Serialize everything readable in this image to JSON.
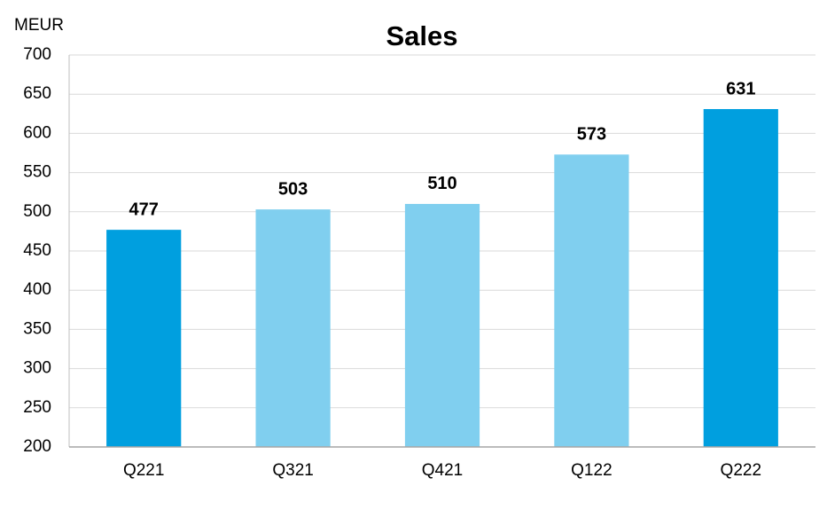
{
  "chart_data": {
    "type": "bar",
    "title": "Sales",
    "y_label": "MEUR",
    "categories": [
      "Q221",
      "Q321",
      "Q421",
      "Q122",
      "Q222"
    ],
    "values": [
      477,
      503,
      510,
      573,
      631
    ],
    "colors": [
      "#009fdf",
      "#80cfef",
      "#80cfef",
      "#80cfef",
      "#009fdf"
    ],
    "ylim": [
      200,
      700
    ],
    "yticks": [
      200,
      250,
      300,
      350,
      400,
      450,
      500,
      550,
      600,
      650,
      700
    ],
    "grid": true
  }
}
